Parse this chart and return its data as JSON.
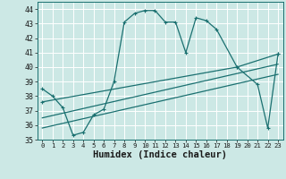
{
  "xlabel": "Humidex (Indice chaleur)",
  "bg_color": "#cce8e5",
  "line_color": "#1a7070",
  "grid_color": "#b0d8d4",
  "xlim": [
    -0.5,
    23.5
  ],
  "ylim": [
    35,
    44.5
  ],
  "yticks": [
    35,
    36,
    37,
    38,
    39,
    40,
    41,
    42,
    43,
    44
  ],
  "xticks": [
    0,
    1,
    2,
    3,
    4,
    5,
    6,
    7,
    8,
    9,
    10,
    11,
    12,
    13,
    14,
    15,
    16,
    17,
    18,
    19,
    20,
    21,
    22,
    23
  ],
  "line1_x": [
    0,
    1,
    2,
    3,
    4,
    5,
    6,
    7,
    8,
    9,
    10,
    11,
    12,
    13,
    14,
    15,
    16,
    17,
    19,
    21,
    22,
    23
  ],
  "line1_y": [
    38.5,
    38.0,
    37.2,
    35.3,
    35.5,
    36.7,
    37.1,
    39.0,
    43.1,
    43.7,
    43.9,
    43.9,
    43.1,
    43.1,
    41.0,
    43.4,
    43.2,
    42.6,
    40.0,
    38.8,
    35.8,
    40.9
  ],
  "line2_x": [
    0,
    19,
    23
  ],
  "line2_y": [
    37.6,
    40.0,
    40.9
  ],
  "line3_x": [
    0,
    23
  ],
  "line3_y": [
    36.5,
    40.2
  ],
  "line4_x": [
    0,
    23
  ],
  "line4_y": [
    35.8,
    39.5
  ],
  "xlabel_fontsize": 7.5,
  "tick_fontsize": 6.5
}
